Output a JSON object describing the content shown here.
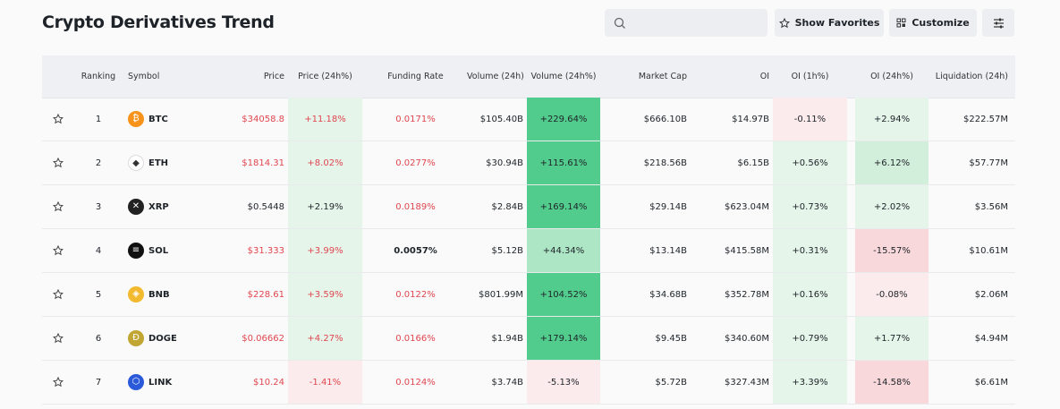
{
  "header": {
    "title": "Crypto Derivatives Trend",
    "buttons": [
      "Show Favorites",
      "Customize"
    ]
  },
  "table": {
    "columns": [
      "Ranking",
      "Symbol",
      "Price",
      "Price (24h%)",
      "Funding Rate",
      "Volume (24h)",
      "Volume (24h%)",
      "Market Cap",
      "OI",
      "OI (1h%)",
      "OI (24h%)",
      "Liquidation (24h)"
    ],
    "rows": [
      [
        "1",
        "BTC",
        "$34058.8",
        "+11.18%",
        "0.0171%",
        "$105.40B",
        "+229.64%",
        "$666.10B",
        "$14.97B",
        "-0.11%",
        "+2.94%",
        "$222.57M"
      ],
      [
        "2",
        "ETH",
        "$1814.31",
        "+8.02%",
        "0.0277%",
        "$30.94B",
        "+115.61%",
        "$218.56B",
        "$6.15B",
        "+0.56%",
        "+6.12%",
        "$57.77M"
      ],
      [
        "3",
        "XRP",
        "$0.5448",
        "+2.19%",
        "0.0189%",
        "$2.84B",
        "+169.14%",
        "$29.14B",
        "$623.04M",
        "+0.73%",
        "+2.02%",
        "$3.56M"
      ],
      [
        "4",
        "SOL",
        "$31.333",
        "+3.99%",
        "0.0057%",
        "$5.12B",
        "+44.34%",
        "$13.14B",
        "$415.58M",
        "+0.31%",
        "-15.57%",
        "$10.61M"
      ],
      [
        "5",
        "BNB",
        "$228.61",
        "+3.59%",
        "0.0122%",
        "$801.99M",
        "+104.52%",
        "$34.68B",
        "$352.78M",
        "+0.16%",
        "-0.08%",
        "$2.06M"
      ],
      [
        "6",
        "DOGE",
        "$0.06662",
        "+4.27%",
        "0.0166%",
        "$1.94B",
        "+179.14%",
        "$9.45B",
        "$340.60M",
        "+0.79%",
        "+1.77%",
        "$4.94M"
      ],
      [
        "7",
        "LINK",
        "$10.24",
        "-1.41%",
        "0.0124%",
        "$3.74B",
        "-5.13%",
        "$5.72B",
        "$327.43M",
        "+3.39%",
        "-14.58%",
        "$6.61M"
      ]
    ]
  }
}
